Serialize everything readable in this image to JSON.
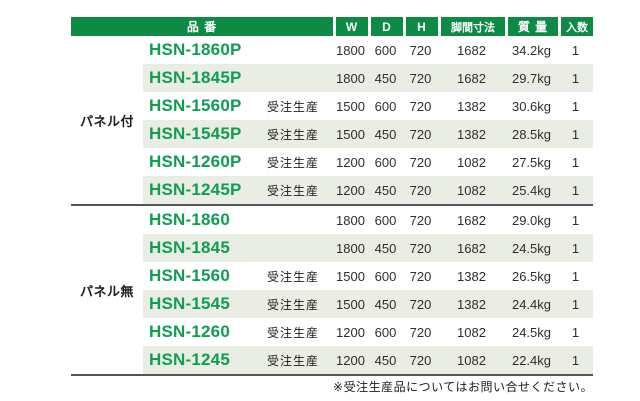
{
  "colors": {
    "header_green": "#0d8a44",
    "code_green": "#0f9d52",
    "stripe": "#e9ede4",
    "line": "#555555"
  },
  "table": {
    "headers": {
      "name": "品 番",
      "w": "W",
      "d": "D",
      "h": "H",
      "leg": "脚間寸法",
      "mass": "質 量",
      "qty": "入数"
    },
    "groups": [
      {
        "label": "パネル付",
        "rows": [
          {
            "code": "HSN-1860P",
            "note": "",
            "w": "1800",
            "d": "600",
            "h": "720",
            "leg": "1682",
            "mass": "34.2kg",
            "qty": "1"
          },
          {
            "code": "HSN-1845P",
            "note": "",
            "w": "1800",
            "d": "450",
            "h": "720",
            "leg": "1682",
            "mass": "29.7kg",
            "qty": "1"
          },
          {
            "code": "HSN-1560P",
            "note": "受注生産",
            "w": "1500",
            "d": "600",
            "h": "720",
            "leg": "1382",
            "mass": "30.6kg",
            "qty": "1"
          },
          {
            "code": "HSN-1545P",
            "note": "受注生産",
            "w": "1500",
            "d": "450",
            "h": "720",
            "leg": "1382",
            "mass": "28.5kg",
            "qty": "1"
          },
          {
            "code": "HSN-1260P",
            "note": "受注生産",
            "w": "1200",
            "d": "600",
            "h": "720",
            "leg": "1082",
            "mass": "27.5kg",
            "qty": "1"
          },
          {
            "code": "HSN-1245P",
            "note": "受注生産",
            "w": "1200",
            "d": "450",
            "h": "720",
            "leg": "1082",
            "mass": "25.4kg",
            "qty": "1"
          }
        ]
      },
      {
        "label": "パネル無",
        "rows": [
          {
            "code": "HSN-1860",
            "note": "",
            "w": "1800",
            "d": "600",
            "h": "720",
            "leg": "1682",
            "mass": "29.0kg",
            "qty": "1"
          },
          {
            "code": "HSN-1845",
            "note": "",
            "w": "1800",
            "d": "450",
            "h": "720",
            "leg": "1682",
            "mass": "24.5kg",
            "qty": "1"
          },
          {
            "code": "HSN-1560",
            "note": "受注生産",
            "w": "1500",
            "d": "600",
            "h": "720",
            "leg": "1382",
            "mass": "26.5kg",
            "qty": "1"
          },
          {
            "code": "HSN-1545",
            "note": "受注生産",
            "w": "1500",
            "d": "450",
            "h": "720",
            "leg": "1382",
            "mass": "24.4kg",
            "qty": "1"
          },
          {
            "code": "HSN-1260",
            "note": "受注生産",
            "w": "1200",
            "d": "600",
            "h": "720",
            "leg": "1082",
            "mass": "24.5kg",
            "qty": "1"
          },
          {
            "code": "HSN-1245",
            "note": "受注生産",
            "w": "1200",
            "d": "450",
            "h": "720",
            "leg": "1082",
            "mass": "22.4kg",
            "qty": "1"
          }
        ]
      }
    ],
    "footnote": "※受注生産品についてはお問い合せください。"
  }
}
